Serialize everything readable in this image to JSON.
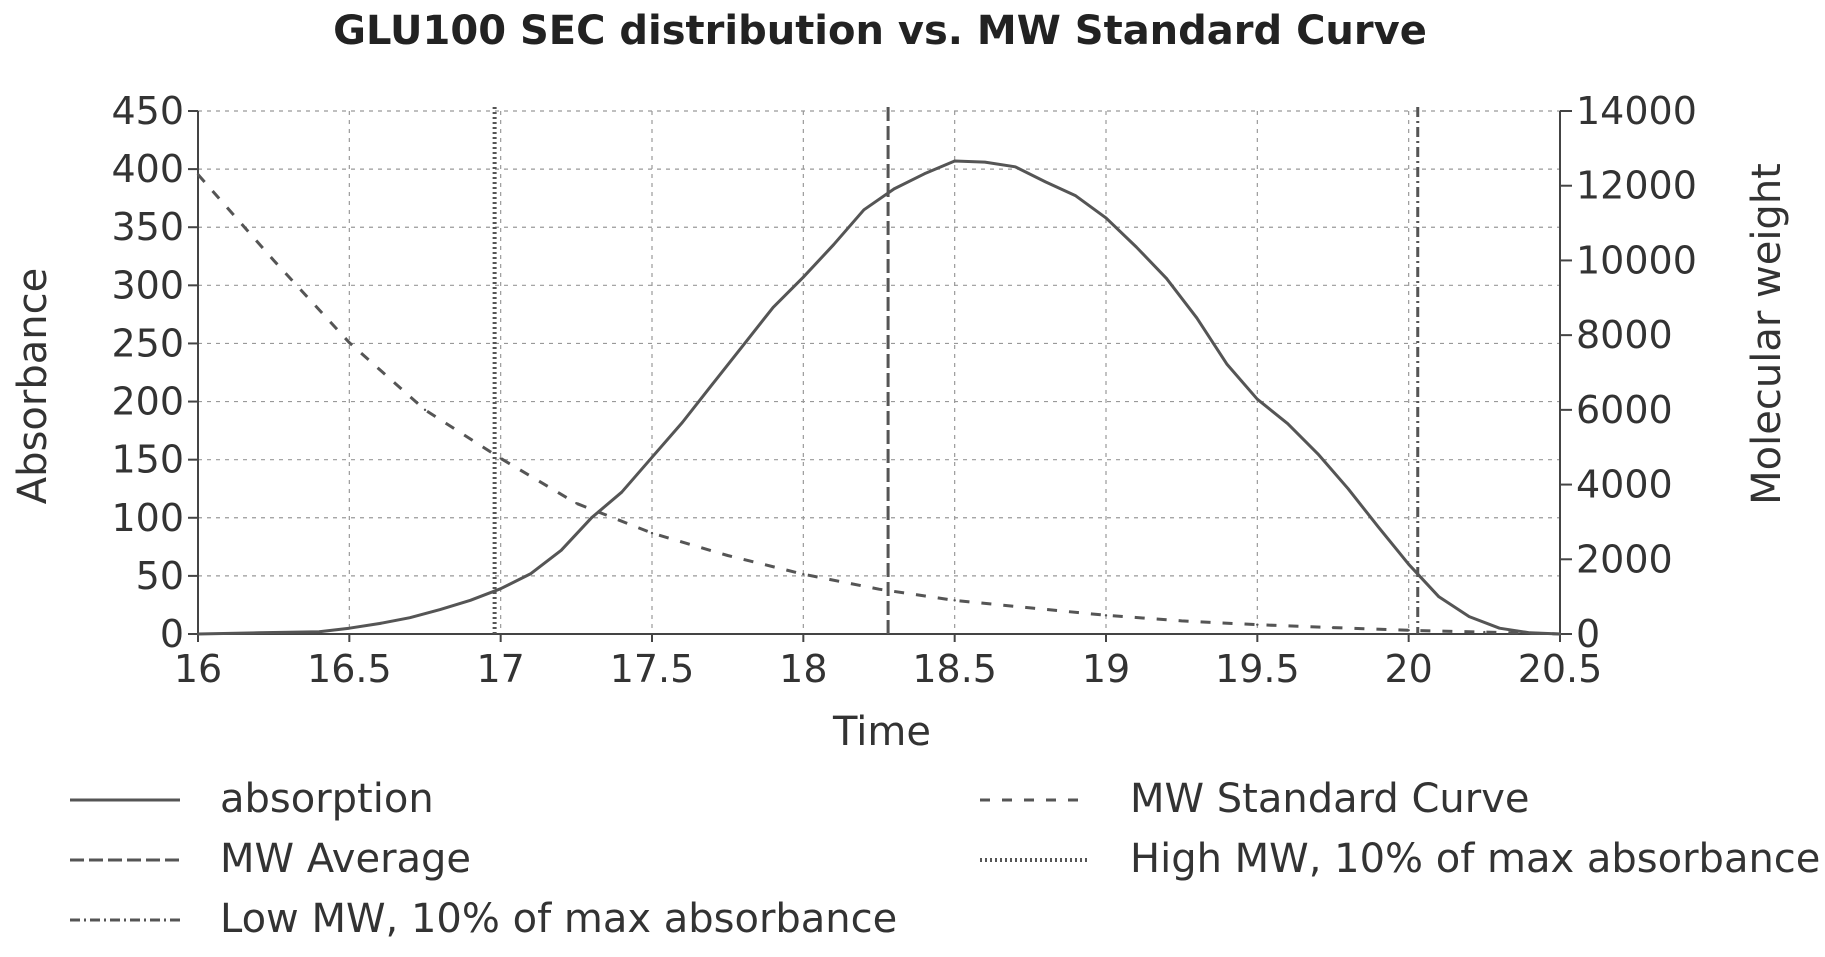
{
  "chart_data": {
    "type": "line",
    "title": "GLU100 SEC distribution vs. MW Standard Curve",
    "xlabel": "Time",
    "ylabel": "Absorbance",
    "y2label": "Molecular weight",
    "xlim": [
      16,
      20.5
    ],
    "ylim": [
      0,
      450
    ],
    "y2lim": [
      0,
      14000
    ],
    "x_ticks": [
      "16",
      "16.5",
      "17",
      "17.5",
      "18",
      "18.5",
      "19",
      "19.5",
      "20",
      "20.5"
    ],
    "y_ticks": [
      "0",
      "50",
      "100",
      "150",
      "200",
      "250",
      "300",
      "350",
      "400",
      "450"
    ],
    "y2_ticks": [
      "0",
      "2000",
      "4000",
      "6000",
      "8000",
      "10000",
      "12000",
      "14000"
    ],
    "grid": true,
    "legend_position": "bottom",
    "series": [
      {
        "name": "absorption",
        "axis": "left",
        "style": "solid",
        "x": [
          16.0,
          16.2,
          16.4,
          16.5,
          16.6,
          16.7,
          16.8,
          16.9,
          17.0,
          17.1,
          17.2,
          17.3,
          17.4,
          17.5,
          17.6,
          17.7,
          17.8,
          17.9,
          18.0,
          18.1,
          18.2,
          18.3,
          18.4,
          18.5,
          18.6,
          18.7,
          18.8,
          18.9,
          19.0,
          19.1,
          19.2,
          19.3,
          19.4,
          19.5,
          19.6,
          19.7,
          19.8,
          19.9,
          20.0,
          20.1,
          20.2,
          20.3,
          20.4,
          20.5
        ],
        "y": [
          0,
          1,
          2,
          5,
          9,
          14,
          21,
          29,
          39,
          52,
          72,
          100,
          122,
          152,
          182,
          215,
          248,
          281,
          307,
          335,
          365,
          383,
          396,
          407,
          406,
          402,
          389,
          377,
          358,
          333,
          306,
          272,
          232,
          202,
          181,
          155,
          125,
          92,
          60,
          32,
          15,
          5,
          1,
          0
        ]
      },
      {
        "name": "MW Standard Curve",
        "axis": "right",
        "style": "dashed",
        "x": [
          16.0,
          16.25,
          16.5,
          16.75,
          17.0,
          17.25,
          17.5,
          17.75,
          18.0,
          18.25,
          18.5,
          18.75,
          19.0,
          19.25,
          19.5,
          19.75,
          20.0,
          20.25,
          20.5
        ],
        "y": [
          12300,
          10000,
          7800,
          6000,
          4700,
          3500,
          2700,
          2100,
          1600,
          1200,
          900,
          700,
          500,
          350,
          250,
          170,
          100,
          50,
          0
        ]
      },
      {
        "name": "MW Average",
        "axis": "left",
        "style": "vertical-line",
        "x_value": 18.28
      },
      {
        "name": "High MW, 10% of max absorbance",
        "axis": "left",
        "style": "vertical-line",
        "x_value": 16.98
      },
      {
        "name": "Low MW, 10% of max absorbance",
        "axis": "left",
        "style": "vertical-line",
        "x_value": 20.03
      }
    ],
    "legend": [
      "absorption",
      "MW Standard Curve",
      "MW Average",
      "High MW, 10% of max absorbance",
      "Low MW, 10% of max absorbance"
    ]
  }
}
